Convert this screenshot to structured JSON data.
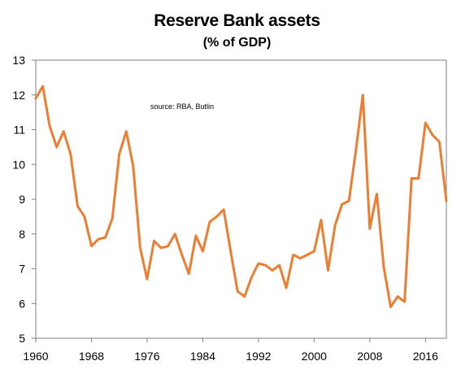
{
  "chart_data": {
    "type": "line",
    "title": "Reserve Bank assets",
    "subtitle": "(% of GDP)",
    "annotation": "source:  RBA, Butlin",
    "xlabel": "",
    "ylabel": "",
    "xlim": [
      1960,
      2019
    ],
    "ylim": [
      5,
      13
    ],
    "x_ticks": [
      "1960",
      "1968",
      "1976",
      "1984",
      "1992",
      "2000",
      "2008",
      "2016"
    ],
    "y_ticks": [
      "5",
      "6",
      "7",
      "8",
      "9",
      "10",
      "11",
      "12",
      "13"
    ],
    "grid": false,
    "line_color": "#ED7D31",
    "series": [
      {
        "x": [
          1960,
          1961,
          1962,
          1963,
          1964,
          1965,
          1966,
          1967,
          1968,
          1969,
          1970,
          1971,
          1972,
          1973,
          1974,
          1975,
          1976,
          1977,
          1978,
          1979,
          1980,
          1981,
          1982,
          1983,
          1984,
          1985,
          1986,
          1987,
          1988,
          1989,
          1990,
          1991,
          1992,
          1993,
          1994,
          1995,
          1996,
          1997,
          1998,
          1999,
          2000,
          2001,
          2002,
          2003,
          2004,
          2005,
          2006,
          2007,
          2008,
          2009,
          2010,
          2011,
          2012,
          2013,
          2014,
          2015,
          2016,
          2017,
          2018,
          2019
        ],
        "values": [
          11.9,
          12.25,
          11.1,
          10.5,
          10.95,
          10.3,
          8.8,
          8.5,
          7.65,
          7.85,
          7.9,
          8.45,
          10.3,
          10.95,
          9.95,
          7.6,
          6.7,
          7.8,
          7.6,
          7.65,
          8.0,
          7.4,
          6.85,
          7.95,
          7.5,
          8.35,
          8.5,
          8.7,
          7.5,
          6.35,
          6.2,
          6.75,
          7.15,
          7.1,
          6.95,
          7.1,
          6.45,
          7.4,
          7.3,
          7.4,
          7.5,
          8.4,
          6.95,
          8.25,
          8.85,
          8.95,
          10.4,
          12.0,
          8.15,
          9.15,
          7.05,
          5.9,
          6.2,
          6.05,
          9.6,
          9.6,
          11.2,
          10.85,
          10.65,
          8.95
        ]
      }
    ]
  }
}
